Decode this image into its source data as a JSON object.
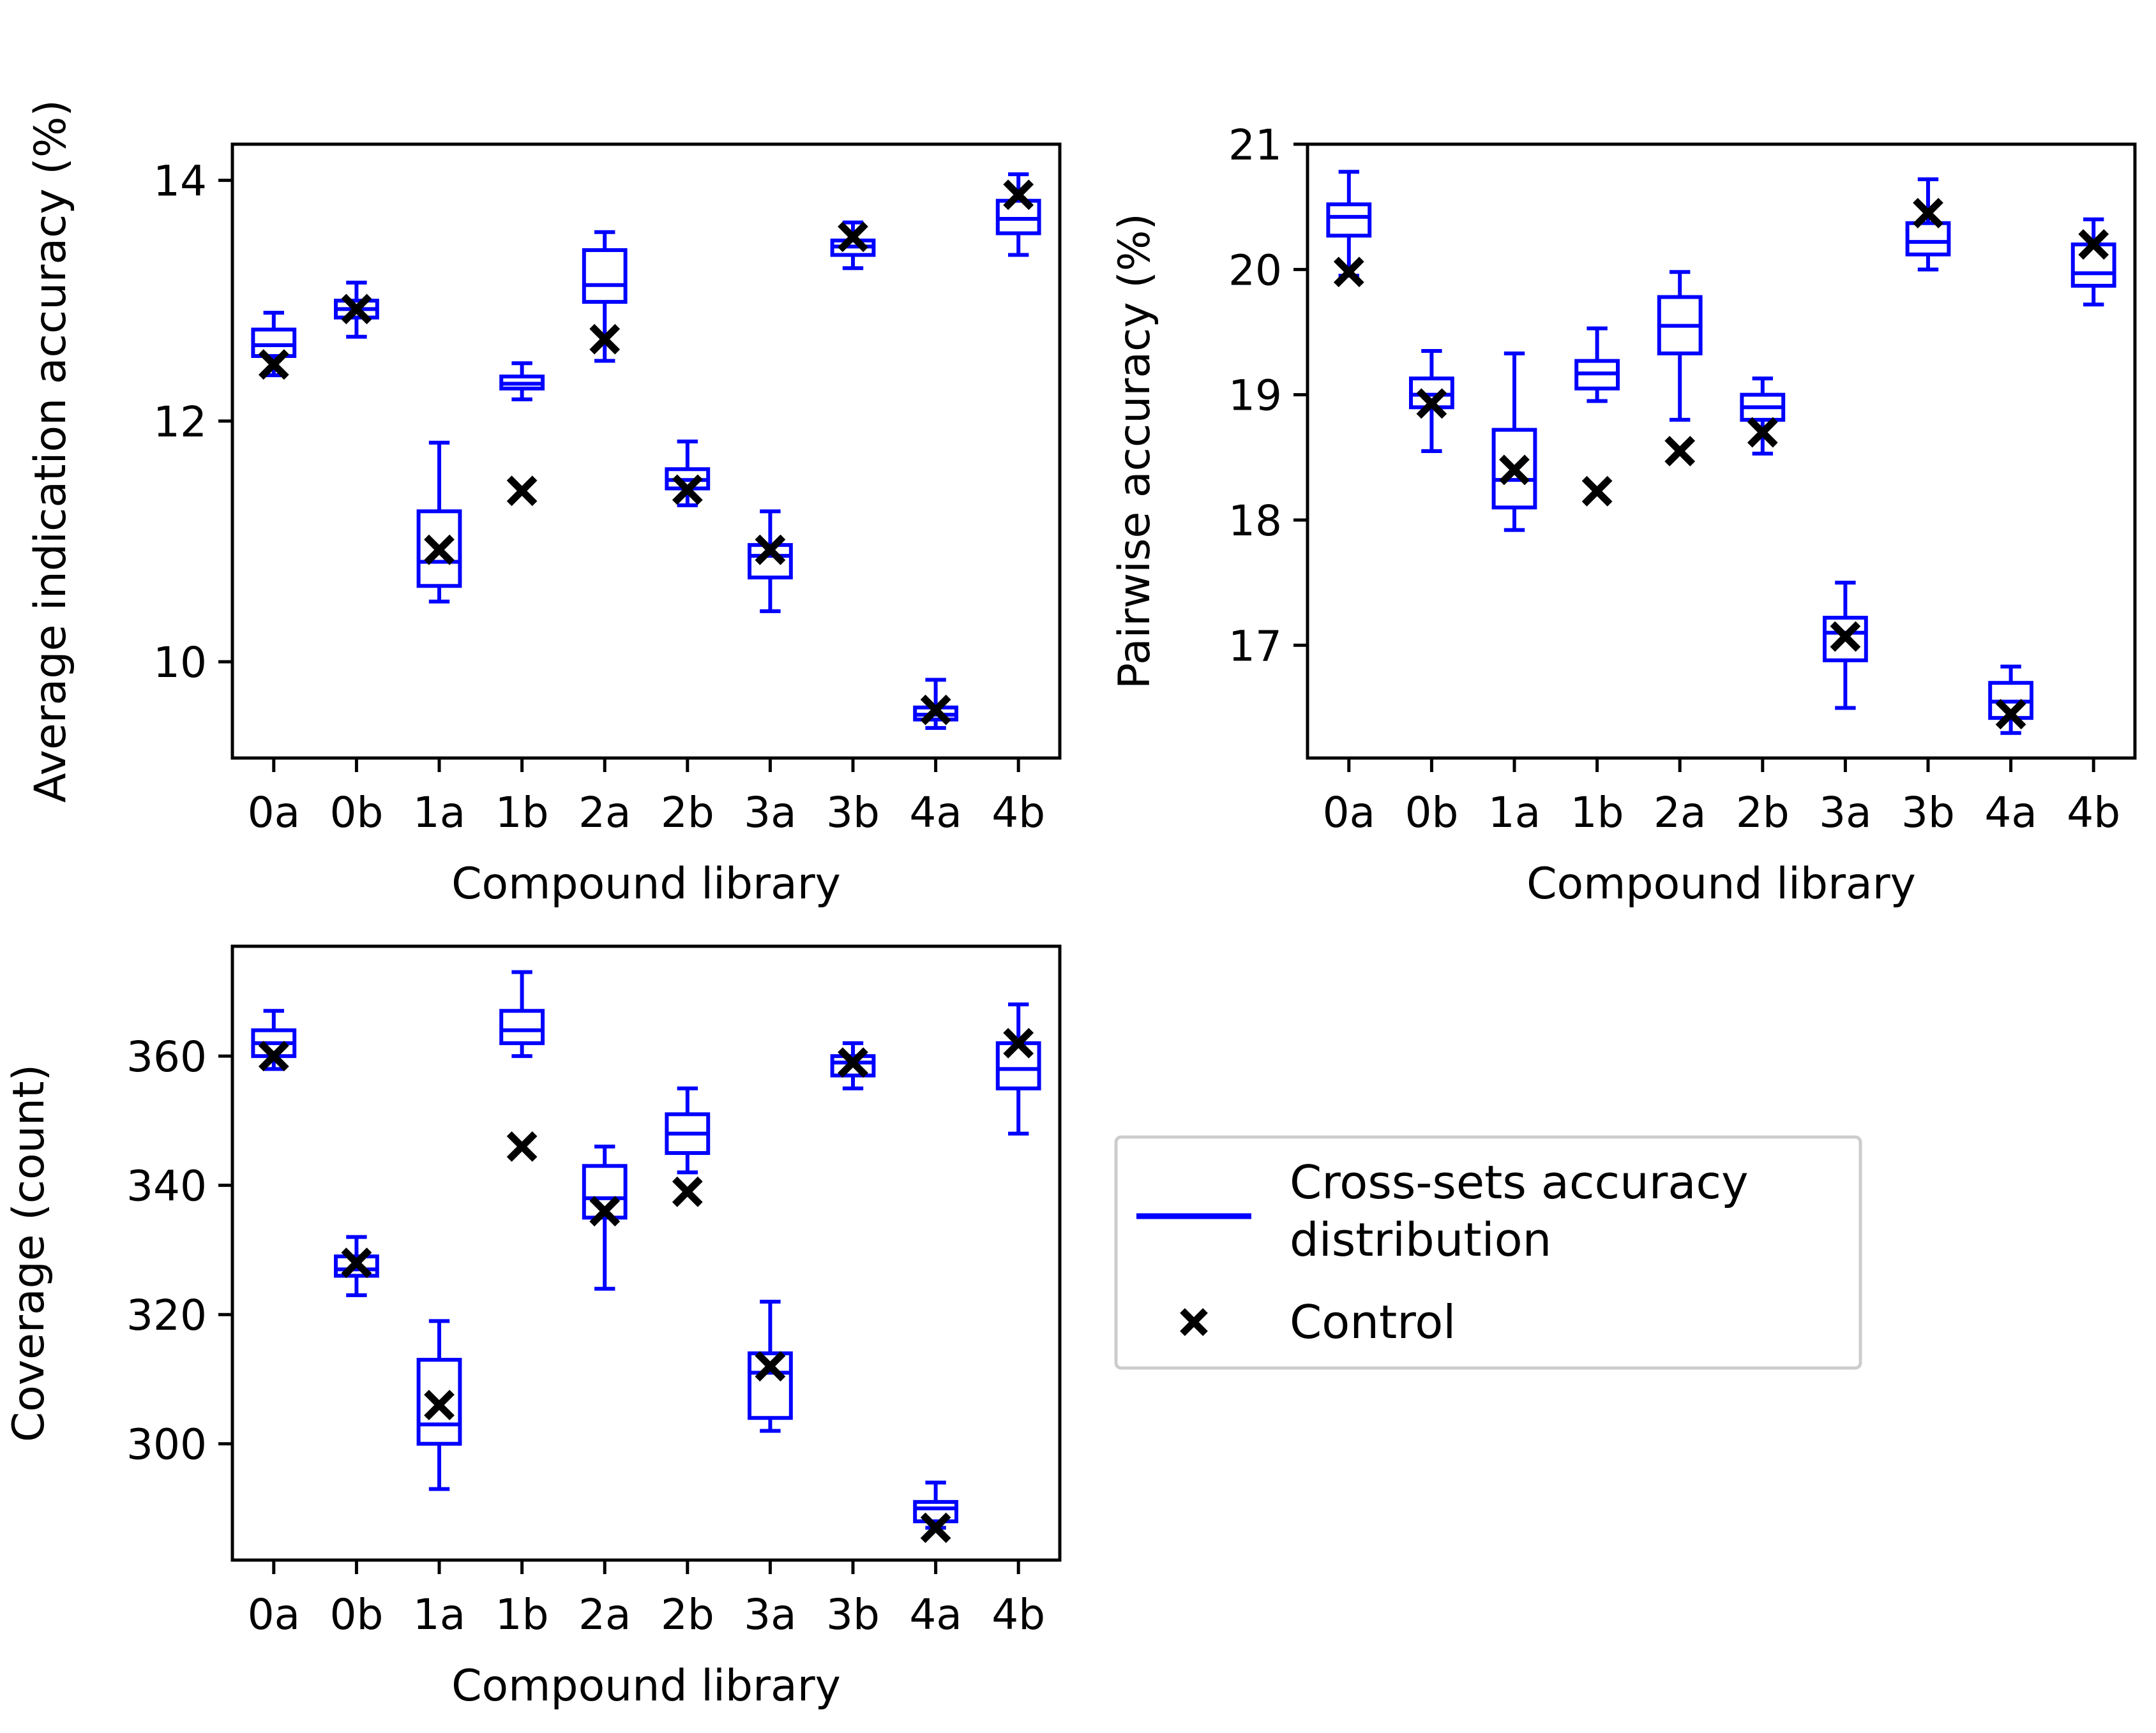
{
  "colors": {
    "box": "#0000ff",
    "control": "#000000",
    "axis": "#000000",
    "legend_frame": "#cccccc"
  },
  "legend": {
    "items": [
      {
        "label_lines": [
          "Cross-sets accuracy",
          "distribution"
        ],
        "symbol": "blue-line"
      },
      {
        "label_lines": [
          "Control"
        ],
        "symbol": "black-x"
      }
    ]
  },
  "chart_data": [
    {
      "type": "box",
      "id": "indication",
      "xlabel": "Compound library",
      "ylabel": "Average indication accuracy (%)",
      "categories": [
        "0a",
        "0b",
        "1a",
        "1b",
        "2a",
        "2b",
        "3a",
        "3b",
        "4a",
        "4b"
      ],
      "ylim": [
        9.2,
        14.3
      ],
      "yticks": [
        10,
        12,
        14
      ],
      "ytick_labels": [
        "10",
        "12",
        "14"
      ],
      "boxes": [
        {
          "whislo": 12.38,
          "q1": 12.54,
          "med": 12.63,
          "q3": 12.76,
          "whishi": 12.9
        },
        {
          "whislo": 12.7,
          "q1": 12.86,
          "med": 12.93,
          "q3": 13.0,
          "whishi": 13.15
        },
        {
          "whislo": 10.5,
          "q1": 10.63,
          "med": 10.83,
          "q3": 11.25,
          "whishi": 11.82
        },
        {
          "whislo": 12.18,
          "q1": 12.27,
          "med": 12.31,
          "q3": 12.37,
          "whishi": 12.48
        },
        {
          "whislo": 12.5,
          "q1": 12.99,
          "med": 13.13,
          "q3": 13.42,
          "whishi": 13.57
        },
        {
          "whislo": 11.3,
          "q1": 11.44,
          "med": 11.51,
          "q3": 11.6,
          "whishi": 11.83
        },
        {
          "whislo": 10.42,
          "q1": 10.7,
          "med": 10.88,
          "q3": 10.97,
          "whishi": 11.25
        },
        {
          "whislo": 13.27,
          "q1": 13.38,
          "med": 13.45,
          "q3": 13.5,
          "whishi": 13.65
        },
        {
          "whislo": 9.45,
          "q1": 9.52,
          "med": 9.56,
          "q3": 9.62,
          "whishi": 9.85
        },
        {
          "whislo": 13.38,
          "q1": 13.56,
          "med": 13.68,
          "q3": 13.83,
          "whishi": 14.05
        }
      ],
      "control": [
        12.47,
        12.93,
        10.93,
        11.42,
        12.68,
        11.43,
        10.93,
        13.53,
        9.6,
        13.88
      ]
    },
    {
      "type": "box",
      "id": "pairwise",
      "xlabel": "Compound library",
      "ylabel": "Pairwise accuracy (%)",
      "categories": [
        "0a",
        "0b",
        "1a",
        "1b",
        "2a",
        "2b",
        "3a",
        "3b",
        "4a",
        "4b"
      ],
      "ylim": [
        16.1,
        21.0
      ],
      "yticks": [
        17,
        18,
        19,
        20,
        21
      ],
      "ytick_labels": [
        "17",
        "18",
        "19",
        "20",
        "21"
      ],
      "boxes": [
        {
          "whislo": 19.95,
          "q1": 20.27,
          "med": 20.42,
          "q3": 20.52,
          "whishi": 20.78
        },
        {
          "whislo": 18.55,
          "q1": 18.9,
          "med": 19.0,
          "q3": 19.13,
          "whishi": 19.35
        },
        {
          "whislo": 17.92,
          "q1": 18.1,
          "med": 18.32,
          "q3": 18.72,
          "whishi": 19.33
        },
        {
          "whislo": 18.95,
          "q1": 19.05,
          "med": 19.17,
          "q3": 19.27,
          "whishi": 19.53
        },
        {
          "whislo": 18.8,
          "q1": 19.33,
          "med": 19.55,
          "q3": 19.78,
          "whishi": 19.98
        },
        {
          "whislo": 18.53,
          "q1": 18.8,
          "med": 18.9,
          "q3": 19.0,
          "whishi": 19.13
        },
        {
          "whislo": 16.5,
          "q1": 16.88,
          "med": 17.1,
          "q3": 17.22,
          "whishi": 17.5
        },
        {
          "whislo": 20.0,
          "q1": 20.12,
          "med": 20.22,
          "q3": 20.37,
          "whishi": 20.72
        },
        {
          "whislo": 16.3,
          "q1": 16.42,
          "med": 16.55,
          "q3": 16.7,
          "whishi": 16.83
        },
        {
          "whislo": 19.72,
          "q1": 19.87,
          "med": 19.97,
          "q3": 20.2,
          "whishi": 20.4
        }
      ],
      "control": [
        19.98,
        18.93,
        18.4,
        18.23,
        18.55,
        18.7,
        17.07,
        20.45,
        16.45,
        20.2
      ]
    },
    {
      "type": "box",
      "id": "coverage",
      "xlabel": "Compound library",
      "ylabel": "Coverage (count)",
      "categories": [
        "0a",
        "0b",
        "1a",
        "1b",
        "2a",
        "2b",
        "3a",
        "3b",
        "4a",
        "4b"
      ],
      "ylim": [
        282,
        377
      ],
      "yticks": [
        300,
        320,
        340,
        360
      ],
      "ytick_labels": [
        "300",
        "320",
        "340",
        "360"
      ],
      "boxes": [
        {
          "whislo": 358,
          "q1": 360,
          "med": 362,
          "q3": 364,
          "whishi": 367
        },
        {
          "whislo": 323,
          "q1": 326,
          "med": 327,
          "q3": 329,
          "whishi": 332
        },
        {
          "whislo": 293,
          "q1": 300,
          "med": 303,
          "q3": 313,
          "whishi": 319
        },
        {
          "whislo": 360,
          "q1": 362,
          "med": 364,
          "q3": 367,
          "whishi": 373
        },
        {
          "whislo": 324,
          "q1": 335,
          "med": 338,
          "q3": 343,
          "whishi": 346
        },
        {
          "whislo": 342,
          "q1": 345,
          "med": 348,
          "q3": 351,
          "whishi": 355
        },
        {
          "whislo": 302,
          "q1": 304,
          "med": 311,
          "q3": 314,
          "whishi": 322
        },
        {
          "whislo": 355,
          "q1": 357,
          "med": 359,
          "q3": 360,
          "whishi": 362
        },
        {
          "whislo": 287,
          "q1": 288,
          "med": 290,
          "q3": 291,
          "whishi": 294
        },
        {
          "whislo": 348,
          "q1": 355,
          "med": 358,
          "q3": 362,
          "whishi": 368
        }
      ],
      "control": [
        360,
        328,
        306,
        346,
        336,
        339,
        312,
        359,
        287,
        362
      ]
    }
  ]
}
